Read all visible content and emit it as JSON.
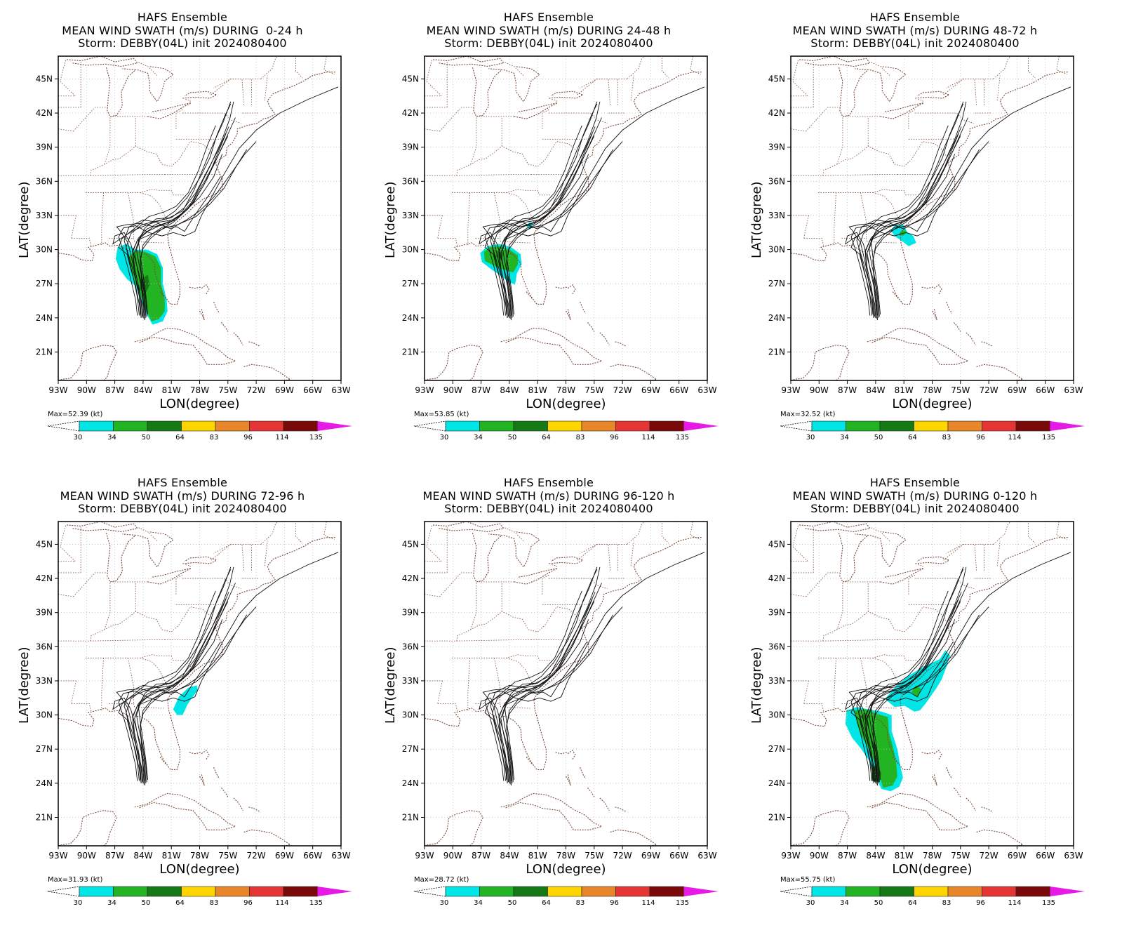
{
  "colorbar": {
    "levels": [
      "30",
      "34",
      "50",
      "64",
      "83",
      "96",
      "114",
      "135"
    ],
    "colors": [
      "#00e5e5",
      "#22b422",
      "#157a15",
      "#ffd500",
      "#e8872a",
      "#e53535",
      "#7a0a0a",
      "#e619e6"
    ],
    "under_color": "#ffffff"
  },
  "axes": {
    "xlabel": "LON(degree)",
    "ylabel": "LAT(degree)",
    "lon_range": [
      -93,
      -63
    ],
    "lat_range": [
      18.5,
      47
    ],
    "xticks": [
      "93W",
      "90W",
      "87W",
      "84W",
      "81W",
      "78W",
      "75W",
      "72W",
      "69W",
      "66W",
      "63W"
    ],
    "yticks": [
      "21N",
      "24N",
      "27N",
      "30N",
      "33N",
      "36N",
      "39N",
      "42N",
      "45N"
    ],
    "grid": true
  },
  "panels": [
    {
      "title1": "HAFS Ensemble",
      "title2": "MEAN WIND SWATH (m/s) DURING  0-24 h",
      "title3": "Storm: DEBBY(04L) init 2024080400",
      "max_label": "Max=52.39 (kt)",
      "max_value_kt": 52.39,
      "period_hours": [
        0,
        24
      ]
    },
    {
      "title1": "HAFS Ensemble",
      "title2": "MEAN WIND SWATH (m/s) DURING 24-48 h",
      "title3": "Storm: DEBBY(04L) init 2024080400",
      "max_label": "Max=53.85 (kt)",
      "max_value_kt": 53.85,
      "period_hours": [
        24,
        48
      ]
    },
    {
      "title1": "HAFS Ensemble",
      "title2": "MEAN WIND SWATH (m/s) DURING 48-72 h",
      "title3": "Storm: DEBBY(04L) init 2024080400",
      "max_label": "Max=32.52 (kt)",
      "max_value_kt": 32.52,
      "period_hours": [
        48,
        72
      ]
    },
    {
      "title1": "HAFS Ensemble",
      "title2": "MEAN WIND SWATH (m/s) DURING 72-96 h",
      "title3": "Storm: DEBBY(04L) init 2024080400",
      "max_label": "Max=31.93 (kt)",
      "max_value_kt": 31.93,
      "period_hours": [
        72,
        96
      ]
    },
    {
      "title1": "HAFS Ensemble",
      "title2": "MEAN WIND SWATH (m/s) DURING 96-120 h",
      "title3": "Storm: DEBBY(04L) init 2024080400",
      "max_label": "Max=28.72 (kt)",
      "max_value_kt": 28.72,
      "period_hours": [
        96,
        120
      ]
    },
    {
      "title1": "HAFS Ensemble",
      "title2": "MEAN WIND SWATH (m/s) DURING 0-120 h",
      "title3": "Storm: DEBBY(04L) init 2024080400",
      "max_label": "Max=55.75 (kt)",
      "max_value_kt": 55.75,
      "period_hours": [
        0,
        120
      ]
    }
  ]
}
